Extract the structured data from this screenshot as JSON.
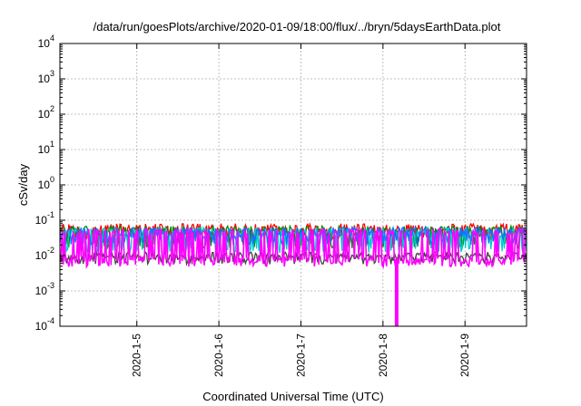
{
  "chart_data": {
    "type": "line",
    "title": "/data/run/goesPlots/archive/2020-01-09/18:00/flux/../bryn/5daysEarthData.plot",
    "xlabel": "Coordinated Universal Time (UTC)",
    "ylabel": "cSv/day",
    "y_scale": "log",
    "ylim": [
      0.0001,
      10000
    ],
    "xlim": [
      "2020-01-04T01:30",
      "2020-01-09T18:00"
    ],
    "y_ticks": [
      {
        "value": 0.0001,
        "base": "10",
        "exp": "-4"
      },
      {
        "value": 0.001,
        "base": "10",
        "exp": "-3"
      },
      {
        "value": 0.01,
        "base": "10",
        "exp": "-2"
      },
      {
        "value": 0.1,
        "base": "10",
        "exp": "-1"
      },
      {
        "value": 1,
        "base": "10",
        "exp": "0"
      },
      {
        "value": 10,
        "base": "10",
        "exp": "1"
      },
      {
        "value": 100,
        "base": "10",
        "exp": "2"
      },
      {
        "value": 1000,
        "base": "10",
        "exp": "3"
      },
      {
        "value": 10000,
        "base": "10",
        "exp": "4"
      }
    ],
    "x_ticks": [
      {
        "value": "2020-01-05",
        "label": "2020-1-5"
      },
      {
        "value": "2020-01-06",
        "label": "2020-1-6"
      },
      {
        "value": "2020-01-07",
        "label": "2020-1-7"
      },
      {
        "value": "2020-01-08",
        "label": "2020-1-8"
      },
      {
        "value": "2020-01-09",
        "label": "2020-1-9"
      }
    ],
    "grid": true,
    "legend": "none",
    "series": [
      {
        "color": "#ff0000",
        "base": 0.05,
        "spike_low": 0.035,
        "spike_high": 0.07
      },
      {
        "color": "#008800",
        "base": 0.045,
        "spike_low": 0.02,
        "spike_high": 0.06
      },
      {
        "color": "#00cccc",
        "base": 0.04,
        "spike_low": 0.015,
        "spike_high": 0.055
      },
      {
        "color": "#1a6fff",
        "base": 0.038,
        "spike_low": 0.025,
        "spike_high": 0.055
      },
      {
        "color": "#444444",
        "base": 0.009,
        "spike_low": 0.007,
        "spike_high": 0.011
      },
      {
        "color": "#ff00ff",
        "base": 0.008,
        "spike_low": 0.006,
        "spike_high": 0.05
      }
    ],
    "annotations": [
      {
        "series_color": "#ff00ff",
        "x": "2020-01-08T04:00",
        "y_min": 0.0001,
        "note_text": ""
      }
    ]
  }
}
